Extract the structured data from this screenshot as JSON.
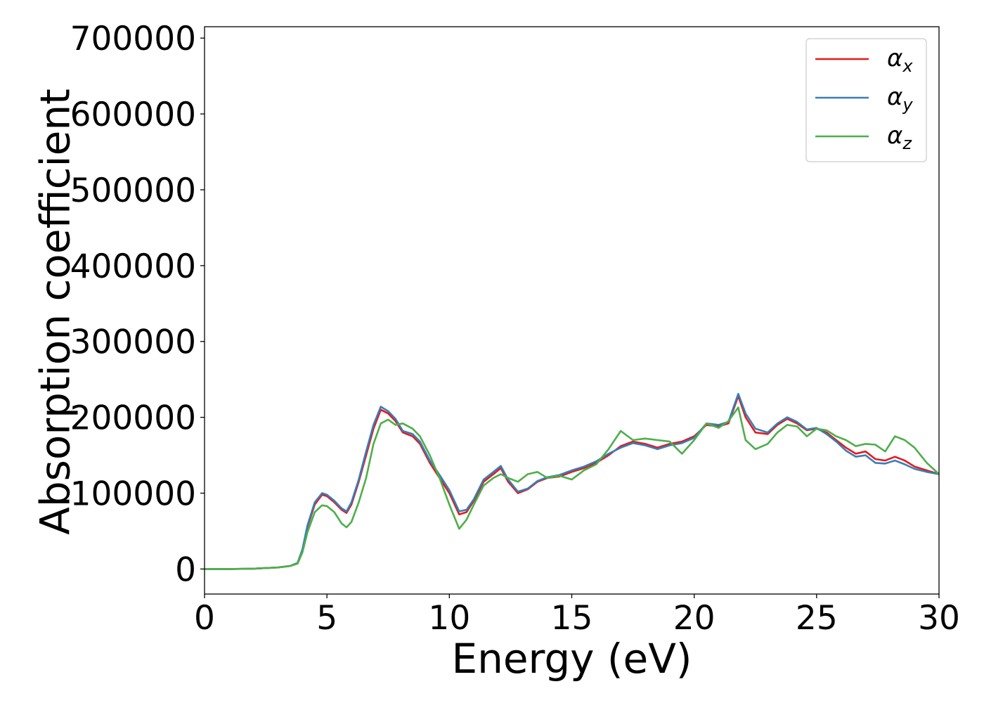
{
  "chart_data": {
    "type": "line",
    "title": "",
    "xlabel": "Energy (eV)",
    "ylabel": "Absorption coefficient",
    "xlim": [
      0,
      30
    ],
    "ylim": [
      -33000,
      715000
    ],
    "xticks": [
      0,
      5,
      10,
      15,
      20,
      25,
      30
    ],
    "xtick_labels": [
      "0",
      "5",
      "10",
      "15",
      "20",
      "25",
      "30"
    ],
    "yticks": [
      0,
      100000,
      200000,
      300000,
      400000,
      500000,
      600000,
      700000
    ],
    "ytick_labels": [
      "0",
      "100000",
      "200000",
      "300000",
      "400000",
      "500000",
      "600000",
      "700000"
    ],
    "grid": false,
    "legend_placement": "top-right",
    "series": [
      {
        "name": "α_x",
        "label_main": "α",
        "label_sub": "x",
        "color": "#e41a1c",
        "x": [
          0,
          1,
          2,
          3,
          3.5,
          3.8,
          4.0,
          4.2,
          4.5,
          4.8,
          5.0,
          5.3,
          5.6,
          5.8,
          6.0,
          6.3,
          6.6,
          6.9,
          7.2,
          7.5,
          7.8,
          8.1,
          8.5,
          8.8,
          9.2,
          9.6,
          10.0,
          10.4,
          10.7,
          11.0,
          11.4,
          11.8,
          12.1,
          12.4,
          12.8,
          13.2,
          13.6,
          14.0,
          14.5,
          15.0,
          15.5,
          16.0,
          16.5,
          17.0,
          17.5,
          18.0,
          18.5,
          19.0,
          19.5,
          20.0,
          20.5,
          21.0,
          21.4,
          21.8,
          22.1,
          22.5,
          23.0,
          23.4,
          23.8,
          24.2,
          24.6,
          25.0,
          25.4,
          25.8,
          26.2,
          26.6,
          27.0,
          27.4,
          27.8,
          28.2,
          28.6,
          29.0,
          29.5,
          30.0
        ],
        "y": [
          0,
          0,
          500,
          2000,
          4000,
          8000,
          25000,
          55000,
          85000,
          98000,
          96000,
          88000,
          78000,
          74000,
          85000,
          115000,
          150000,
          185000,
          210000,
          205000,
          195000,
          180000,
          175000,
          165000,
          140000,
          120000,
          100000,
          72000,
          75000,
          90000,
          115000,
          125000,
          133000,
          115000,
          100000,
          105000,
          115000,
          120000,
          122000,
          128000,
          133000,
          140000,
          150000,
          162000,
          168000,
          165000,
          160000,
          165000,
          168000,
          175000,
          190000,
          188000,
          192000,
          228000,
          200000,
          180000,
          178000,
          190000,
          198000,
          192000,
          183000,
          185000,
          180000,
          170000,
          160000,
          152000,
          155000,
          145000,
          143000,
          148000,
          143000,
          135000,
          130000,
          125000
        ]
      },
      {
        "name": "α_y",
        "label_main": "α",
        "label_sub": "y",
        "color": "#377eb8",
        "x": [
          0,
          1,
          2,
          3,
          3.5,
          3.8,
          4.0,
          4.2,
          4.5,
          4.8,
          5.0,
          5.3,
          5.6,
          5.8,
          6.0,
          6.3,
          6.6,
          6.9,
          7.2,
          7.5,
          7.8,
          8.1,
          8.5,
          8.8,
          9.2,
          9.6,
          10.0,
          10.4,
          10.7,
          11.0,
          11.4,
          11.8,
          12.1,
          12.4,
          12.8,
          13.2,
          13.6,
          14.0,
          14.5,
          15.0,
          15.5,
          16.0,
          16.5,
          17.0,
          17.5,
          18.0,
          18.5,
          19.0,
          19.5,
          20.0,
          20.5,
          21.0,
          21.4,
          21.8,
          22.1,
          22.5,
          23.0,
          23.4,
          23.8,
          24.2,
          24.6,
          25.0,
          25.4,
          25.8,
          26.2,
          26.6,
          27.0,
          27.4,
          27.8,
          28.2,
          28.6,
          29.0,
          29.5,
          30.0
        ],
        "y": [
          0,
          0,
          500,
          2000,
          4000,
          8000,
          26000,
          57000,
          88000,
          100000,
          98000,
          90000,
          80000,
          76000,
          88000,
          118000,
          155000,
          190000,
          214000,
          208000,
          198000,
          182000,
          178000,
          168000,
          143000,
          124000,
          104000,
          76000,
          78000,
          92000,
          118000,
          128000,
          136000,
          118000,
          102000,
          106000,
          116000,
          121000,
          124000,
          130000,
          135000,
          142000,
          152000,
          160000,
          166000,
          163000,
          158000,
          163000,
          166000,
          173000,
          192000,
          190000,
          194000,
          231000,
          205000,
          185000,
          180000,
          192000,
          200000,
          194000,
          184000,
          186000,
          178000,
          168000,
          156000,
          148000,
          150000,
          140000,
          139000,
          143000,
          138000,
          132000,
          128000,
          125000
        ]
      },
      {
        "name": "α_z",
        "label_main": "α",
        "label_sub": "z",
        "color": "#4daf4a",
        "x": [
          0,
          1,
          2,
          3,
          3.5,
          3.8,
          4.0,
          4.2,
          4.5,
          4.8,
          5.0,
          5.3,
          5.6,
          5.8,
          6.0,
          6.3,
          6.6,
          6.9,
          7.2,
          7.5,
          7.8,
          8.1,
          8.5,
          8.8,
          9.2,
          9.6,
          10.0,
          10.4,
          10.7,
          11.0,
          11.4,
          11.8,
          12.1,
          12.4,
          12.8,
          13.2,
          13.6,
          14.0,
          14.5,
          15.0,
          15.5,
          16.0,
          16.5,
          17.0,
          17.5,
          18.0,
          18.5,
          19.0,
          19.5,
          20.0,
          20.5,
          21.0,
          21.4,
          21.8,
          22.1,
          22.5,
          23.0,
          23.4,
          23.8,
          24.2,
          24.6,
          25.0,
          25.4,
          25.8,
          26.2,
          26.6,
          27.0,
          27.4,
          27.8,
          28.2,
          28.6,
          29.0,
          29.5,
          30.0
        ],
        "y": [
          0,
          0,
          500,
          2000,
          4000,
          7000,
          22000,
          48000,
          75000,
          84000,
          83000,
          75000,
          60000,
          55000,
          62000,
          88000,
          120000,
          165000,
          192000,
          197000,
          190000,
          192000,
          185000,
          175000,
          150000,
          120000,
          85000,
          53000,
          65000,
          85000,
          110000,
          120000,
          125000,
          120000,
          115000,
          125000,
          128000,
          120000,
          123000,
          118000,
          130000,
          138000,
          158000,
          182000,
          170000,
          172000,
          170000,
          168000,
          152000,
          170000,
          192000,
          186000,
          195000,
          213000,
          170000,
          158000,
          165000,
          180000,
          190000,
          188000,
          175000,
          185000,
          183000,
          175000,
          170000,
          162000,
          165000,
          164000,
          155000,
          175000,
          170000,
          160000,
          140000,
          125000
        ]
      }
    ]
  }
}
